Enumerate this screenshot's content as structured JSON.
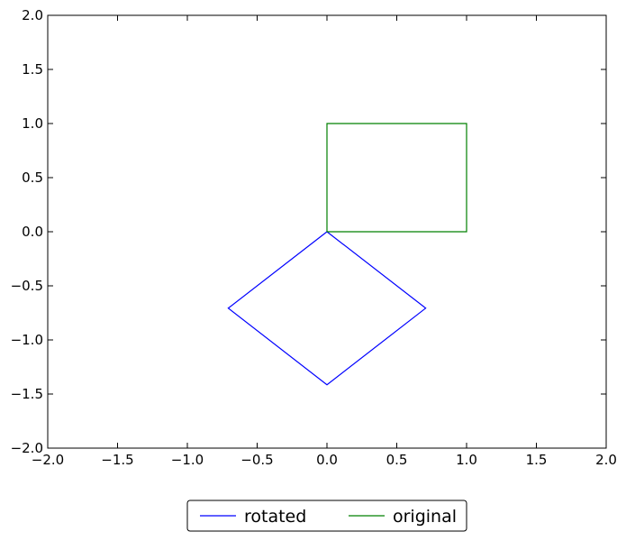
{
  "chart_data": {
    "type": "line",
    "title": "",
    "xlabel": "",
    "ylabel": "",
    "xlim": [
      -2.0,
      2.0
    ],
    "ylim": [
      -2.0,
      2.0
    ],
    "xticks": [
      -2.0,
      -1.5,
      -1.0,
      -0.5,
      0.0,
      0.5,
      1.0,
      1.5,
      2.0
    ],
    "yticks": [
      -2.0,
      -1.5,
      -1.0,
      -0.5,
      0.0,
      0.5,
      1.0,
      1.5,
      2.0
    ],
    "xtick_labels": [
      "−2.0",
      "−1.5",
      "−1.0",
      "−0.5",
      "0.0",
      "0.5",
      "1.0",
      "1.5",
      "2.0"
    ],
    "ytick_labels": [
      "−2.0",
      "−1.5",
      "−1.0",
      "−0.5",
      "0.0",
      "0.5",
      "1.0",
      "1.5",
      "2.0"
    ],
    "grid": false,
    "legend_position": "bottom-center",
    "series": [
      {
        "name": "rotated",
        "color": "#0000ff",
        "x": [
          0.0,
          0.707,
          0.0,
          -0.707,
          0.0
        ],
        "y": [
          0.0,
          -0.707,
          -1.414,
          -0.707,
          0.0
        ]
      },
      {
        "name": "original",
        "color": "#008000",
        "x": [
          0.0,
          1.0,
          1.0,
          0.0,
          0.0
        ],
        "y": [
          0.0,
          0.0,
          1.0,
          1.0,
          0.0
        ]
      }
    ]
  }
}
